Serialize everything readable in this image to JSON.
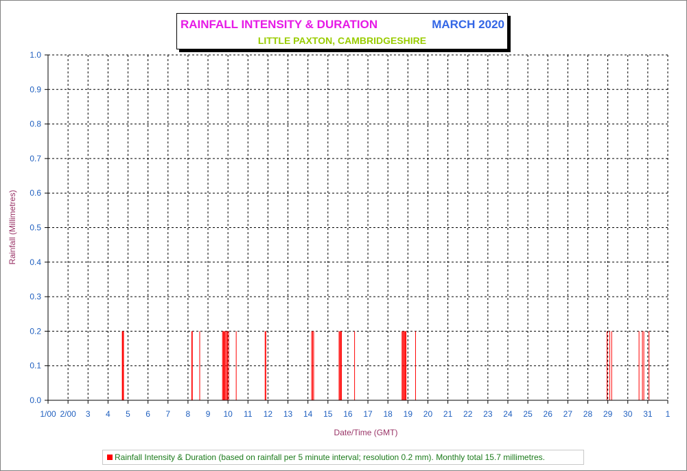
{
  "chart_data": {
    "type": "bar",
    "title": "RAINFALL INTENSITY & DURATION",
    "title_date": "MARCH 2020",
    "subtitle": "LITTLE PAXTON, CAMBRIDGESHIRE",
    "xlabel": "Date/Time (GMT)",
    "ylabel": "Rainfall (Millimetres)",
    "ylim": [
      0,
      1
    ],
    "y_ticks": [
      "0.0",
      "0.1",
      "0.2",
      "0.3",
      "0.4",
      "0.5",
      "0.6",
      "0.7",
      "0.8",
      "0.9",
      "1.0"
    ],
    "xlim": [
      1,
      32
    ],
    "x_ticks": [
      "1/00",
      "2/00",
      "3",
      "4",
      "5",
      "6",
      "7",
      "8",
      "9",
      "10",
      "11",
      "12",
      "13",
      "14",
      "15",
      "16",
      "17",
      "18",
      "19",
      "20",
      "21",
      "22",
      "23",
      "24",
      "25",
      "26",
      "27",
      "28",
      "29",
      "30",
      "31",
      "1"
    ],
    "grid": true,
    "legend_position": "bottom",
    "series": [
      {
        "name": "Rainfall Intensity & Duration (based on rainfall per 5 minute interval; resolution 0.2 mm). Monthly total 15.7 millimetres.",
        "color": "#ff0000",
        "bars": [
          {
            "x": 4.72,
            "value": 0.2,
            "width": 0.05
          },
          {
            "x": 4.77,
            "value": 0.2,
            "width": 0.05
          },
          {
            "x": 8.18,
            "value": 0.2,
            "width": 0.02
          },
          {
            "x": 8.21,
            "value": 0.2,
            "width": 0.02
          },
          {
            "x": 8.58,
            "value": 0.2,
            "width": 0.02
          },
          {
            "x": 9.72,
            "value": 0.2,
            "width": 0.02
          },
          {
            "x": 9.76,
            "value": 0.2,
            "width": 0.02
          },
          {
            "x": 9.8,
            "value": 0.2,
            "width": 0.02
          },
          {
            "x": 9.84,
            "value": 0.2,
            "width": 0.02
          },
          {
            "x": 9.88,
            "value": 0.2,
            "width": 0.02
          },
          {
            "x": 9.93,
            "value": 0.2,
            "width": 0.02
          },
          {
            "x": 9.97,
            "value": 0.2,
            "width": 0.02
          },
          {
            "x": 10.03,
            "value": 0.2,
            "width": 0.02
          },
          {
            "x": 10.4,
            "value": 0.2,
            "width": 0.01
          },
          {
            "x": 11.85,
            "value": 0.2,
            "width": 0.02
          },
          {
            "x": 11.89,
            "value": 0.2,
            "width": 0.02
          },
          {
            "x": 14.18,
            "value": 0.2,
            "width": 0.02
          },
          {
            "x": 14.23,
            "value": 0.2,
            "width": 0.02
          },
          {
            "x": 14.28,
            "value": 0.2,
            "width": 0.02
          },
          {
            "x": 15.55,
            "value": 0.2,
            "width": 0.02
          },
          {
            "x": 15.59,
            "value": 0.2,
            "width": 0.02
          },
          {
            "x": 15.63,
            "value": 0.2,
            "width": 0.02
          },
          {
            "x": 15.67,
            "value": 0.2,
            "width": 0.02
          },
          {
            "x": 16.32,
            "value": 0.2,
            "width": 0.01
          },
          {
            "x": 18.7,
            "value": 0.2,
            "width": 0.02
          },
          {
            "x": 18.74,
            "value": 0.2,
            "width": 0.02
          },
          {
            "x": 18.78,
            "value": 0.2,
            "width": 0.02
          },
          {
            "x": 18.82,
            "value": 0.2,
            "width": 0.02
          },
          {
            "x": 18.86,
            "value": 0.2,
            "width": 0.02
          },
          {
            "x": 18.9,
            "value": 0.2,
            "width": 0.02
          },
          {
            "x": 19.37,
            "value": 0.2,
            "width": 0.01
          },
          {
            "x": 28.95,
            "value": 0.2,
            "width": 0.01
          },
          {
            "x": 29.08,
            "value": 0.2,
            "width": 0.01
          },
          {
            "x": 29.18,
            "value": 0.2,
            "width": 0.01
          },
          {
            "x": 30.55,
            "value": 0.2,
            "width": 0.01
          },
          {
            "x": 30.72,
            "value": 0.2,
            "width": 0.01
          },
          {
            "x": 30.79,
            "value": 0.2,
            "width": 0.01
          },
          {
            "x": 31.05,
            "value": 0.2,
            "width": 0.01
          }
        ]
      }
    ]
  }
}
